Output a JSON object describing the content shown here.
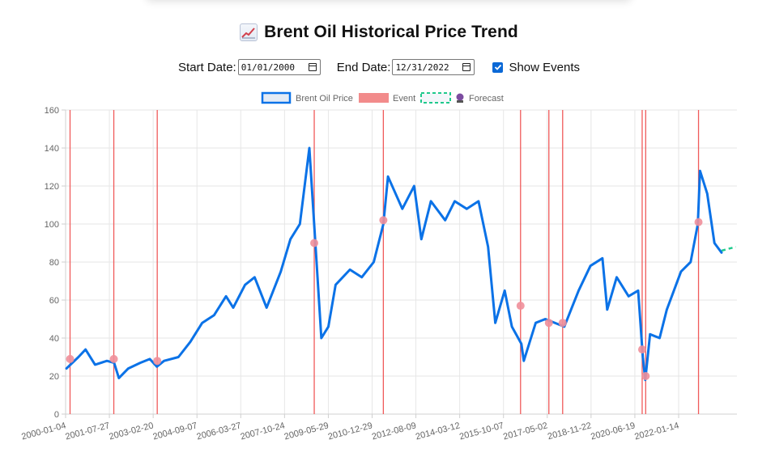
{
  "header": {
    "title": "Brent Oil Historical Price Trend",
    "icon": "chart-increasing-icon"
  },
  "controls": {
    "start_label": "Start Date:",
    "start_value": "01/01/2000",
    "end_label": "End Date:",
    "end_value": "12/31/2022",
    "show_events_label": "Show Events",
    "show_events_checked": true
  },
  "colors": {
    "price": "#0b72e7",
    "event": "#f05a5a",
    "event_point": "#ef8f9a",
    "forecast": "#1ec98c",
    "grid": "#e6e6e6"
  },
  "chart_data": {
    "type": "line",
    "title": "",
    "xlabel": "",
    "ylabel": "",
    "ylim": [
      0,
      160
    ],
    "yticks": [
      0,
      20,
      40,
      60,
      80,
      100,
      120,
      140,
      160
    ],
    "grid": true,
    "legend_position": "top-center",
    "legend": [
      {
        "label": "Brent Oil Price",
        "style": "line"
      },
      {
        "label": "Event",
        "style": "bar"
      },
      {
        "label": "Forecast",
        "style": "dashed-line"
      }
    ],
    "x_tick_labels": [
      "2000-01-04",
      "2001-07-27",
      "2003-02-20",
      "2004-09-07",
      "2006-03-27",
      "2007-10-24",
      "2009-05-29",
      "2010-12-29",
      "2012-08-09",
      "2014-03-12",
      "2015-10-07",
      "2017-05-02",
      "2018-11-22",
      "2020-06-19",
      "2022-01-14"
    ],
    "x_range": [
      "2000-01-04",
      "2023-06-30"
    ],
    "series": [
      {
        "name": "Brent Oil Price",
        "x": [
          "2000-01",
          "2000-06",
          "2000-09",
          "2001-01",
          "2001-06",
          "2001-09",
          "2001-11",
          "2002-03",
          "2002-08",
          "2002-12",
          "2003-03",
          "2003-06",
          "2003-12",
          "2004-05",
          "2004-10",
          "2005-03",
          "2005-08",
          "2005-11",
          "2006-04",
          "2006-08",
          "2007-01",
          "2007-07",
          "2007-11",
          "2008-03",
          "2008-07",
          "2008-10",
          "2008-12",
          "2009-03",
          "2009-06",
          "2009-12",
          "2010-05",
          "2010-10",
          "2011-02",
          "2011-04",
          "2011-10",
          "2012-03",
          "2012-06",
          "2012-10",
          "2013-04",
          "2013-08",
          "2014-01",
          "2014-06",
          "2014-10",
          "2015-01",
          "2015-05",
          "2015-08",
          "2015-12",
          "2016-01",
          "2016-06",
          "2016-10",
          "2017-06",
          "2017-12",
          "2018-05",
          "2018-10",
          "2018-12",
          "2019-04",
          "2019-09",
          "2020-01",
          "2020-03",
          "2020-04",
          "2020-06",
          "2020-10",
          "2021-01",
          "2021-07",
          "2021-11",
          "2022-02",
          "2022-03",
          "2022-06",
          "2022-09",
          "2022-12"
        ],
        "y": [
          24,
          30,
          34,
          26,
          28,
          27,
          19,
          24,
          27,
          29,
          25,
          28,
          30,
          38,
          48,
          52,
          62,
          56,
          68,
          72,
          56,
          75,
          92,
          100,
          140,
          80,
          40,
          46,
          68,
          76,
          72,
          80,
          100,
          125,
          108,
          120,
          92,
          112,
          102,
          112,
          108,
          112,
          88,
          48,
          65,
          46,
          37,
          28,
          48,
          50,
          46,
          65,
          78,
          82,
          55,
          72,
          62,
          65,
          30,
          18,
          42,
          40,
          55,
          75,
          80,
          100,
          128,
          116,
          90,
          85
        ]
      },
      {
        "name": "Forecast",
        "x": [
          "2022-12",
          "2023-03",
          "2023-06"
        ],
        "y": [
          86,
          87,
          88
        ]
      }
    ],
    "events": [
      {
        "date": "2000-03-01",
        "price": 29
      },
      {
        "date": "2001-09-11",
        "price": 29
      },
      {
        "date": "2003-03-20",
        "price": 28
      },
      {
        "date": "2008-09-15",
        "price": 90
      },
      {
        "date": "2011-02-15",
        "price": 102
      },
      {
        "date": "2015-12-04",
        "price": 57
      },
      {
        "date": "2016-11-30",
        "price": 48
      },
      {
        "date": "2017-05-25",
        "price": 48
      },
      {
        "date": "2020-03-06",
        "price": 34
      },
      {
        "date": "2020-04-20",
        "price": 20
      },
      {
        "date": "2022-02-24",
        "price": 101
      }
    ]
  }
}
